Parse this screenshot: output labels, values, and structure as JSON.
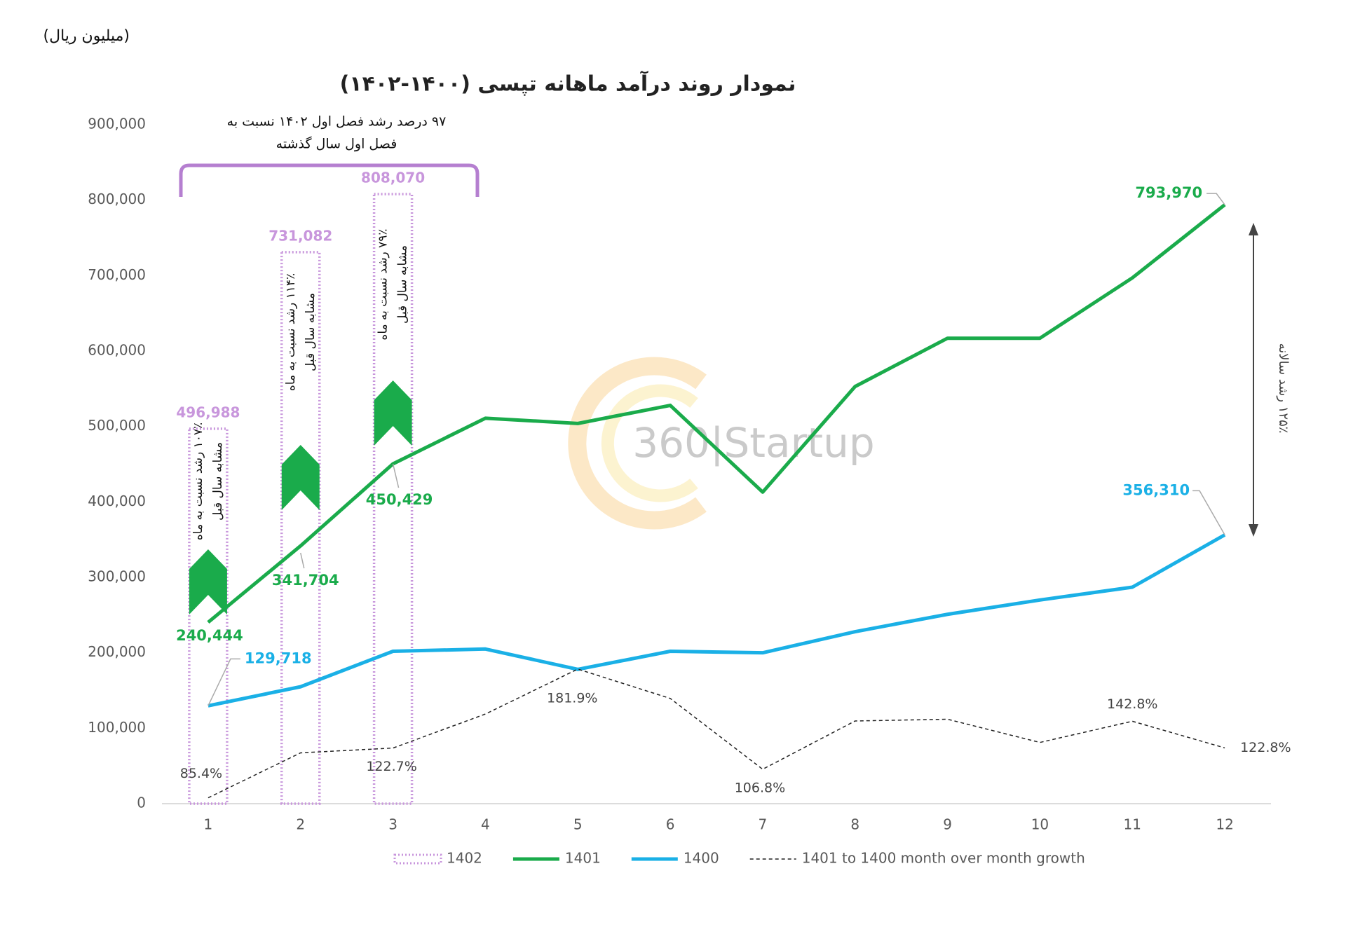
{
  "chart_data": {
    "type": "line",
    "title": "نمودار روند درآمد ماهانه تپسی (۱۴۰۰-۱۴۰۲)",
    "unit_label": "(میلیون ریال)",
    "watermark": "360|Startup",
    "x": [
      1,
      2,
      3,
      4,
      5,
      6,
      7,
      8,
      9,
      10,
      11,
      12
    ],
    "xlim": [
      0.5,
      12.5
    ],
    "xticks": [
      1,
      2,
      3,
      4,
      5,
      6,
      7,
      8,
      9,
      10,
      11,
      12
    ],
    "ylim": [
      0,
      900000
    ],
    "yticks": [
      0,
      {
        "value": 100000,
        "label": "100,000"
      },
      {
        "value": 200000,
        "label": "200,000"
      },
      {
        "value": 300000,
        "label": "300,000"
      },
      {
        "value": 400000,
        "label": "400,000"
      },
      {
        "value": 500000,
        "label": "500,000"
      },
      {
        "value": 600000,
        "label": "600,000"
      },
      {
        "value": 700000,
        "label": "700,000"
      },
      {
        "value": 800000,
        "label": "800,000"
      },
      {
        "value": 900000,
        "label": "900,000"
      }
    ],
    "y2lim": [
      81,
      590
    ],
    "legend": "bottom",
    "series": [
      {
        "name": "1402",
        "type": "bar",
        "color": "#c896dc",
        "values": [
          496988,
          731082,
          808070,
          null,
          null,
          null,
          null,
          null,
          null,
          null,
          null,
          null
        ],
        "value_labels": [
          "496,988",
          "731,082",
          "808,070",
          null,
          null,
          null,
          null,
          null,
          null,
          null,
          null,
          null
        ]
      },
      {
        "name": "1401",
        "color": "#1aab4b",
        "values": [
          240444,
          341704,
          450429,
          511000,
          504000,
          528000,
          413000,
          553000,
          617000,
          617000,
          697000,
          793970
        ],
        "value_labels": [
          "240,444",
          "341,704",
          "450,429",
          null,
          null,
          null,
          null,
          null,
          null,
          null,
          null,
          "793,970"
        ]
      },
      {
        "name": "1400",
        "color": "#1ab0e6",
        "values": [
          129718,
          155000,
          202000,
          205000,
          178000,
          202000,
          200000,
          228000,
          251000,
          270000,
          287000,
          356310
        ],
        "value_labels": [
          "129,718",
          null,
          null,
          null,
          null,
          null,
          null,
          null,
          null,
          null,
          null,
          "356,310"
        ]
      },
      {
        "name": "1401 to 1400 month over month growth",
        "color": "#222222",
        "line_style": "dashed",
        "axis": "y2",
        "values": [
          85.4,
          119.1,
          122.7,
          148.2,
          181.9,
          159.9,
          106.8,
          143,
          144.3,
          126.9,
          142.8,
          122.8
        ],
        "value_labels": [
          "85.4%",
          null,
          "122.7%",
          null,
          "181.9%",
          null,
          "106.8%",
          null,
          null,
          null,
          "142.8%",
          "122.8%"
        ]
      }
    ],
    "annotations": [
      {
        "lines": [
          "۱۰۷٪ رشد نسبت به ماه",
          "مشابه سال قبل"
        ]
      },
      {
        "lines": [
          "۱۱۴٪ رشد نسبت به ماه",
          "مشابه سال قبل"
        ]
      },
      {
        "lines": [
          "۷۹٪ رشد نسبت به ماه",
          "مشابه سال قبل"
        ]
      },
      {
        "lines": [
          "۹۷ درصد رشد فصل اول ۱۴۰۲ نسبت به",
          "فصل اول سال گذشته"
        ]
      },
      {
        "lines": [
          "۱۲۵٪ رشد سالانه"
        ]
      }
    ]
  }
}
